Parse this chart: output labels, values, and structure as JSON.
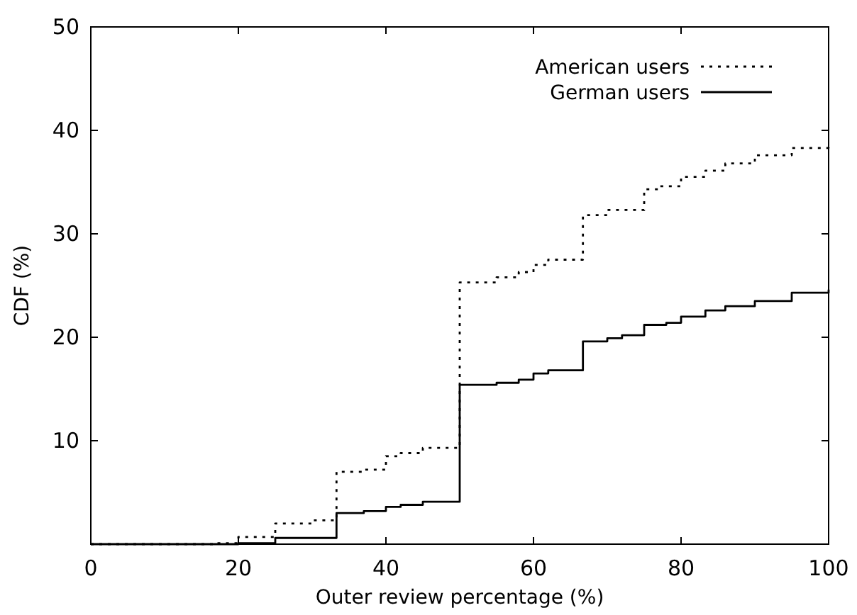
{
  "chart_data": {
    "type": "step",
    "xlabel": "Outer review percentage (%)",
    "ylabel": "CDF (%)",
    "xlim": [
      0,
      100
    ],
    "ylim": [
      0,
      50
    ],
    "xticks": [
      0,
      20,
      40,
      60,
      80,
      100
    ],
    "yticks": [
      {
        "value": 0,
        "label": null
      },
      10,
      20,
      30,
      40,
      50
    ],
    "legend": "top right",
    "grid": false,
    "series": [
      {
        "name": "American users",
        "color": "#000000",
        "line_style": "dotted",
        "x": [
          0,
          10,
          17,
          20,
          25,
          30,
          33.3,
          37,
          40,
          42,
          45,
          50,
          55,
          58,
          60,
          62,
          66.7,
          70,
          75,
          77,
          80,
          83.3,
          86,
          90,
          95,
          100
        ],
        "values": [
          0,
          0,
          0.1,
          0.7,
          2,
          2.3,
          7,
          7.2,
          8.5,
          8.8,
          9.3,
          25.3,
          25.8,
          26.3,
          27,
          27.5,
          31.8,
          32.3,
          34.3,
          34.6,
          35.5,
          36.1,
          36.8,
          37.6,
          38.3,
          38.5
        ]
      },
      {
        "name": "German users",
        "color": "#000000",
        "line_style": "solid",
        "x": [
          0,
          20,
          25,
          33.3,
          37,
          40,
          42,
          45,
          50,
          55,
          58,
          60,
          62,
          66.7,
          70,
          72,
          75,
          78,
          80,
          83.3,
          86,
          90,
          95,
          100
        ],
        "values": [
          0,
          0.1,
          0.6,
          3,
          3.2,
          3.6,
          3.8,
          4.1,
          15.4,
          15.6,
          15.9,
          16.5,
          16.8,
          19.6,
          19.9,
          20.2,
          21.2,
          21.4,
          22,
          22.6,
          23,
          23.5,
          24.3,
          24.6
        ]
      }
    ]
  }
}
